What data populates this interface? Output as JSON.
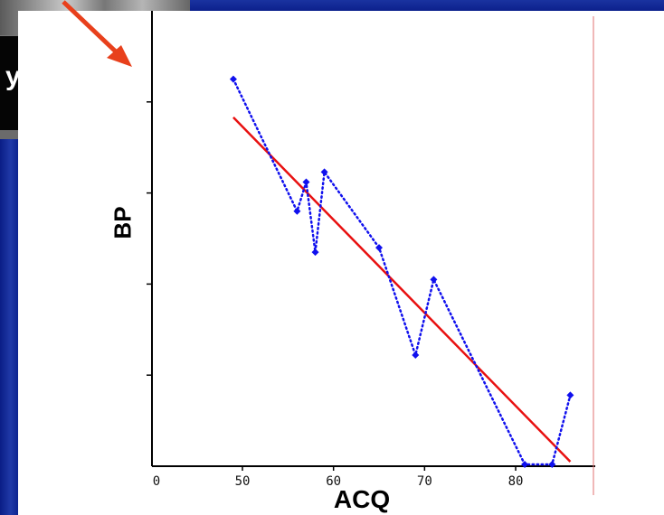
{
  "slide": {
    "title_fragment": "y"
  },
  "colors": {
    "slide_background": "#0b1f8c",
    "arrow": "#e8401c",
    "points": "#1010ee",
    "fit_line": "#e81010",
    "right_border": "#e07070"
  },
  "chart_data": {
    "type": "scatter",
    "title": "",
    "xlabel": "ACQ",
    "ylabel": "BP",
    "xlim": [
      0,
      87
    ],
    "ylim": [
      0,
      5
    ],
    "x_ticks": [
      "0",
      "50",
      "60",
      "70",
      "80"
    ],
    "y_ticks_labeled": false,
    "grid": false,
    "series": [
      {
        "style": "dotted-line-with-markers",
        "x": [
          49,
          56,
          57,
          58,
          59,
          65,
          69,
          71,
          81,
          84,
          86
        ],
        "y": [
          4.25,
          2.8,
          3.12,
          2.35,
          3.23,
          2.4,
          1.22,
          2.05,
          0.02,
          0.02,
          0.78
        ]
      },
      {
        "style": "fit-line",
        "x": [
          49,
          86
        ],
        "y": [
          3.83,
          0.05
        ]
      }
    ],
    "annotations": [
      {
        "type": "arrow",
        "pointing": "down-right"
      }
    ]
  }
}
